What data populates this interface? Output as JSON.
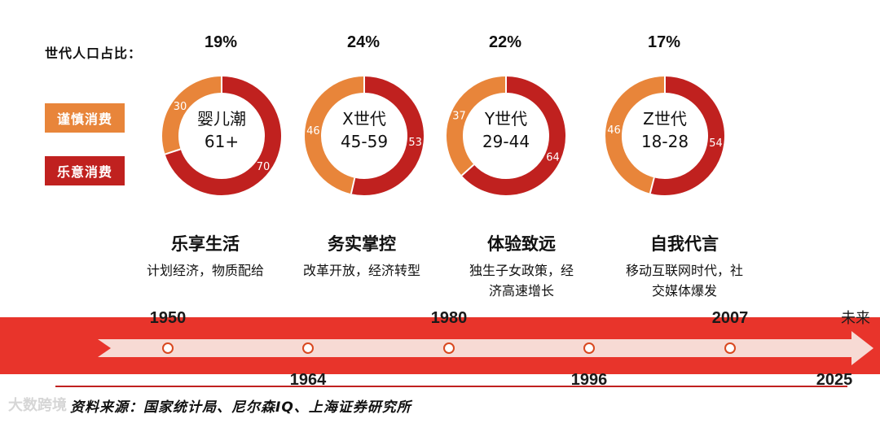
{
  "legend": {
    "title": "世代人口占比：",
    "cautious_label": "谨慎消费",
    "willing_label": "乐意消费"
  },
  "colors": {
    "cautious": "#E8853A",
    "willing": "#C0211F",
    "timeline_red": "#E8342B",
    "timeline_arrow": "#F7DAD4"
  },
  "chart_data": [
    {
      "type": "pie",
      "title": "婴儿潮",
      "subtitle": "61+",
      "population_share": "19%",
      "series": [
        {
          "name": "谨慎消费",
          "value": 30
        },
        {
          "name": "乐意消费",
          "value": 70
        }
      ]
    },
    {
      "type": "pie",
      "title": "X世代",
      "subtitle": "45-59",
      "population_share": "24%",
      "series": [
        {
          "name": "谨慎消费",
          "value": 46
        },
        {
          "name": "乐意消费",
          "value": 53
        }
      ]
    },
    {
      "type": "pie",
      "title": "Y世代",
      "subtitle": "29-44",
      "population_share": "22%",
      "series": [
        {
          "name": "谨慎消费",
          "value": 37
        },
        {
          "name": "乐意消费",
          "value": 64
        }
      ]
    },
    {
      "type": "pie",
      "title": "Z世代",
      "subtitle": "18-28",
      "population_share": "17%",
      "series": [
        {
          "name": "谨慎消费",
          "value": 46
        },
        {
          "name": "乐意消费",
          "value": 54
        }
      ]
    }
  ],
  "generations": [
    {
      "theme": "乐享生活",
      "desc": [
        "计划经济，物质配给"
      ]
    },
    {
      "theme": "务实掌控",
      "desc": [
        "改革开放，经济转型"
      ]
    },
    {
      "theme": "体验致远",
      "desc": [
        "独生子女政策，经",
        "济高速增长"
      ]
    },
    {
      "theme": "自我代言",
      "desc": [
        "移动互联网时代，社",
        "交媒体爆发"
      ]
    }
  ],
  "timeline": {
    "top_years": [
      "1950",
      "1980",
      "2007"
    ],
    "bottom_years": [
      "1964",
      "1996",
      "2025"
    ],
    "future_label": "未来"
  },
  "source": "资料来源：国家统计局、尼尔森IQ、上海证券研究所",
  "watermark": "大数跨境"
}
